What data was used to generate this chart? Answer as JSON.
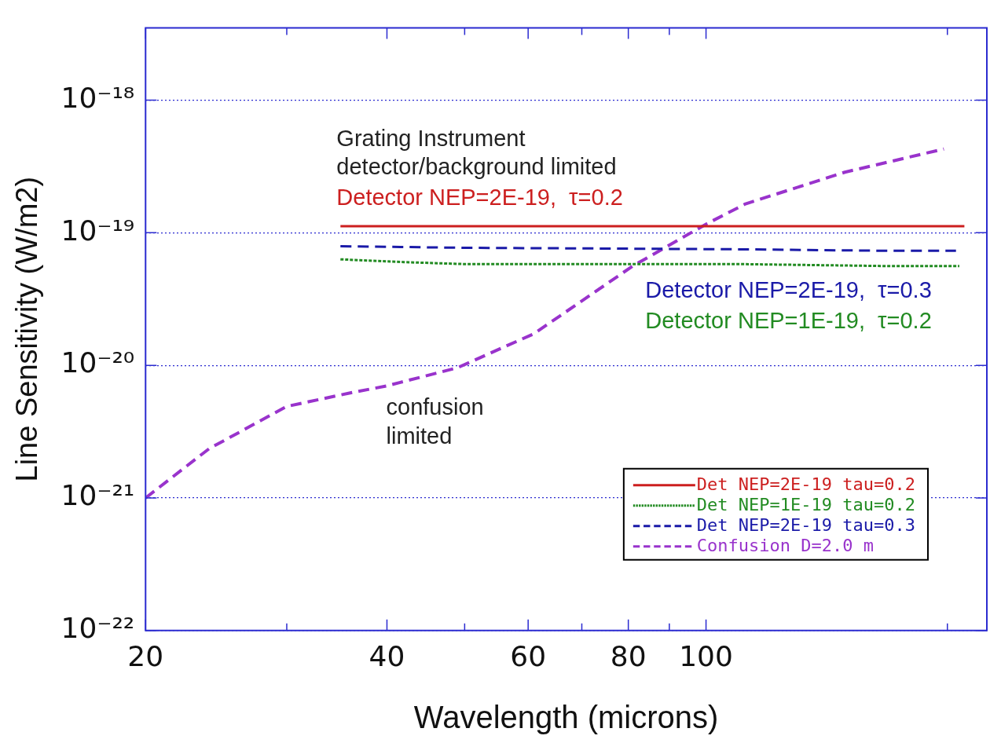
{
  "chart_data": {
    "type": "line",
    "xlabel": "Wavelength (microns)",
    "ylabel": "Line Sensitivity (W/m2)",
    "log": "xy",
    "grid": "y",
    "legend": "bottom right",
    "marker": "none",
    "xlim": [
      20,
      224
    ],
    "xticks": [
      20,
      {
        "value": 30,
        "label": null
      },
      40,
      {
        "value": 50,
        "label": null
      },
      60,
      {
        "value": 70,
        "label": null
      },
      80,
      {
        "value": 90,
        "label": null
      },
      100,
      {
        "value": 200,
        "label": null
      }
    ],
    "ylim": [
      1e-22,
      3.5e-18
    ],
    "yticks": [
      {
        "value": 1e-22,
        "label": "10⁻²²"
      },
      {
        "value": 1e-21,
        "label": "10⁻²¹"
      },
      {
        "value": 1e-20,
        "label": "10⁻²⁰"
      },
      {
        "value": 1e-19,
        "label": "10⁻¹⁹"
      },
      {
        "value": 1e-18,
        "label": "10⁻¹⁸"
      }
    ],
    "series": [
      {
        "name": "Det NEP=2E-19 tau=0.2",
        "color": "#cc1f1f",
        "line_style": "solid",
        "x": [
          35,
          210
        ],
        "values": [
          1.12e-19,
          1.12e-19
        ]
      },
      {
        "name": "Det NEP=1E-19 tau=0.2",
        "color": "#228b22",
        "line_style": "dotted",
        "x": [
          35,
          42,
          50,
          110,
          170,
          207
        ],
        "values": [
          6.3e-20,
          6e-20,
          5.8e-20,
          5.8e-20,
          5.6e-20,
          5.6e-20
        ]
      },
      {
        "name": "Det NEP=2E-19 tau=0.3",
        "color": "#1a1aa8",
        "line_style": "dashed",
        "x": [
          35,
          50,
          110,
          170,
          205
        ],
        "values": [
          7.9e-20,
          7.7e-20,
          7.5e-20,
          7.3e-20,
          7.3e-20
        ]
      },
      {
        "name": "Confusion D=2.0 m",
        "color": "#9933cc",
        "line_style": "dashed",
        "x": [
          20,
          24,
          30,
          36,
          40,
          49,
          61,
          81,
          100,
          112,
          149,
          198
        ],
        "values": [
          1e-21,
          2.35e-21,
          4.9e-21,
          6.2e-21,
          7e-21,
          9.6e-21,
          1.73e-20,
          5.6e-20,
          1.16e-19,
          1.65e-19,
          2.86e-19,
          4.28e-19
        ]
      }
    ],
    "annotations": [
      "Grating Instrument",
      "detector/background limited",
      "Detector NEP=2E-19,  τ=0.2",
      "Detector NEP=2E-19,  τ=0.3",
      "Detector NEP=1E-19,  τ=0.2",
      "confusion",
      "limited"
    ]
  }
}
